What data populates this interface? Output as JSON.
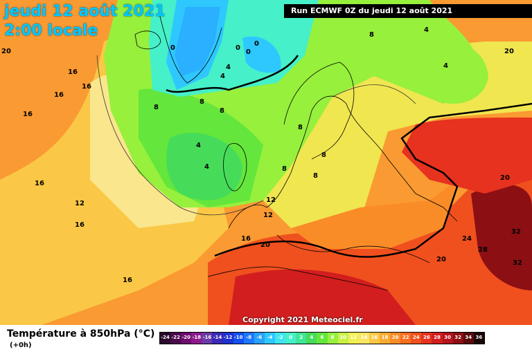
{
  "title": {
    "date": "jeudi 12 août 2021",
    "time": "2:00 locale"
  },
  "run": "Run ECMWF 0Z du jeudi 12 août 2021",
  "copyright": "Copyright 2021 Meteociel.fr",
  "legend": {
    "title": "Température à 850hPa (°C)",
    "subtitle": "(+0h)",
    "steps": [
      {
        "value": "-24",
        "color": "#2a0a2a"
      },
      {
        "value": "-22",
        "color": "#4b0a4b"
      },
      {
        "value": "-20",
        "color": "#6e0b6e"
      },
      {
        "value": "-18",
        "color": "#8c1a8c"
      },
      {
        "value": "-16",
        "color": "#6a3aa8"
      },
      {
        "value": "-14",
        "color": "#3b2ab8"
      },
      {
        "value": "-12",
        "color": "#1e32d0"
      },
      {
        "value": "-10",
        "color": "#1450f0"
      },
      {
        "value": "-8",
        "color": "#1e78ff"
      },
      {
        "value": "-6",
        "color": "#28a0ff"
      },
      {
        "value": "-4",
        "color": "#2ec8ff"
      },
      {
        "value": "-2",
        "color": "#3ee6f0"
      },
      {
        "value": "0",
        "color": "#46f0c8"
      },
      {
        "value": "2",
        "color": "#3ee696"
      },
      {
        "value": "4",
        "color": "#46dc5a"
      },
      {
        "value": "6",
        "color": "#64e63c"
      },
      {
        "value": "8",
        "color": "#96f03c"
      },
      {
        "value": "10",
        "color": "#c8f046"
      },
      {
        "value": "12",
        "color": "#f0f050"
      },
      {
        "value": "14",
        "color": "#fae664"
      },
      {
        "value": "16",
        "color": "#fac846"
      },
      {
        "value": "18",
        "color": "#faaa32"
      },
      {
        "value": "20",
        "color": "#fa8c28"
      },
      {
        "value": "22",
        "color": "#fa6e1e"
      },
      {
        "value": "24",
        "color": "#f0501e"
      },
      {
        "value": "26",
        "color": "#e6321e"
      },
      {
        "value": "28",
        "color": "#d21e1e"
      },
      {
        "value": "30",
        "color": "#b4141e"
      },
      {
        "value": "32",
        "color": "#8c0f14"
      },
      {
        "value": "34",
        "color": "#5a0a0a"
      },
      {
        "value": "36",
        "color": "#1a0505"
      }
    ]
  },
  "map_labels": [
    "20",
    "16",
    "16",
    "16",
    "16",
    "16",
    "12",
    "16",
    "16",
    "16",
    "20",
    "0",
    "0",
    "0",
    "0",
    "4",
    "4",
    "8",
    "8",
    "8",
    "4",
    "4",
    "8",
    "8",
    "8",
    "8",
    "8",
    "4",
    "4",
    "12",
    "12",
    "20",
    "20",
    "20",
    "24",
    "28",
    "32",
    "32"
  ]
}
